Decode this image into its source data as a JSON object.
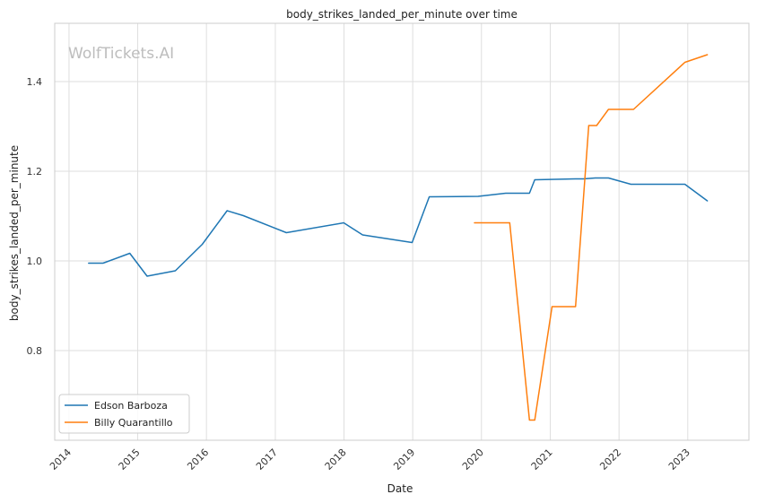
{
  "chart_data": {
    "type": "line",
    "title": "body_strikes_landed_per_minute over time",
    "xlabel": "Date",
    "ylabel": "body_strikes_landed_per_minute",
    "watermark": "WolfTickets.AI",
    "x_ticks": [
      "2014",
      "2015",
      "2016",
      "2017",
      "2018",
      "2019",
      "2020",
      "2021",
      "2022",
      "2023"
    ],
    "y_ticks": [
      "0.8",
      "1.0",
      "1.2",
      "1.4"
    ],
    "xlim": [
      "2013-10-17",
      "2023-11-22"
    ],
    "ylim": [
      0.6,
      1.53
    ],
    "grid": true,
    "legend_position": "lower-left",
    "series": [
      {
        "name": "Edson Barboza",
        "color": "#1f77b4",
        "points": [
          [
            "2014-04-15",
            0.995
          ],
          [
            "2014-07-01",
            0.995
          ],
          [
            "2014-11-20",
            1.017
          ],
          [
            "2015-02-20",
            0.966
          ],
          [
            "2015-07-20",
            0.978
          ],
          [
            "2015-12-10",
            1.037
          ],
          [
            "2016-04-20",
            1.112
          ],
          [
            "2016-07-15",
            1.101
          ],
          [
            "2017-03-01",
            1.063
          ],
          [
            "2017-12-30",
            1.085
          ],
          [
            "2018-04-10",
            1.058
          ],
          [
            "2018-12-29",
            1.041
          ],
          [
            "2019-03-30",
            1.143
          ],
          [
            "2019-12-14",
            1.144
          ],
          [
            "2020-05-09",
            1.151
          ],
          [
            "2020-09-12",
            1.151
          ],
          [
            "2020-10-10",
            1.181
          ],
          [
            "2021-05-15",
            1.183
          ],
          [
            "2021-06-26",
            1.183
          ],
          [
            "2021-08-28",
            1.185
          ],
          [
            "2021-11-06",
            1.185
          ],
          [
            "2022-03-05",
            1.171
          ],
          [
            "2022-12-17",
            1.171
          ],
          [
            "2023-04-15",
            1.134
          ]
        ]
      },
      {
        "name": "Billy Quarantillo",
        "color": "#ff7f0e",
        "points": [
          [
            "2019-11-25",
            1.085
          ],
          [
            "2020-05-30",
            1.085
          ],
          [
            "2020-09-12",
            0.645
          ],
          [
            "2020-10-10",
            0.645
          ],
          [
            "2021-01-10",
            0.898
          ],
          [
            "2021-05-15",
            0.898
          ],
          [
            "2021-07-24",
            1.302
          ],
          [
            "2021-09-04",
            1.302
          ],
          [
            "2021-11-06",
            1.338
          ],
          [
            "2022-03-19",
            1.338
          ],
          [
            "2022-12-17",
            1.443
          ],
          [
            "2023-04-15",
            1.46
          ]
        ]
      }
    ]
  }
}
